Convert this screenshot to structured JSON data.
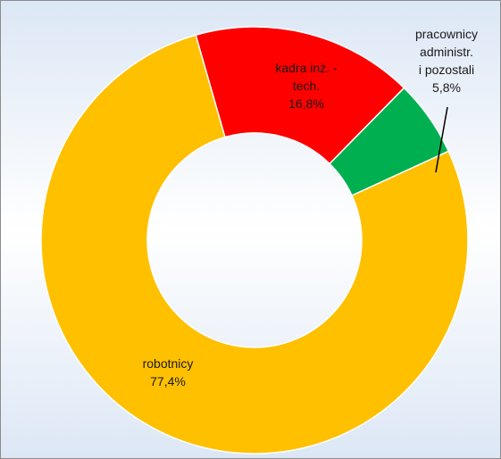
{
  "chart_data": {
    "type": "pie",
    "variant": "donut",
    "legend": "none",
    "series": [
      {
        "name": "",
        "slices": [
          {
            "label_lines": [
              "kadra inż. -",
              "tech."
            ],
            "value_text": "16,8%",
            "value": 16.8,
            "color": "#ff0000"
          },
          {
            "label_lines": [
              "pracownicy",
              "administr.",
              "i pozostali"
            ],
            "value_text": "5,8%",
            "value": 5.8,
            "color": "#00b050"
          },
          {
            "label_lines": [
              "robotnicy"
            ],
            "value_text": "77,4%",
            "value": 77.4,
            "color": "#ffc000"
          }
        ]
      }
    ]
  }
}
